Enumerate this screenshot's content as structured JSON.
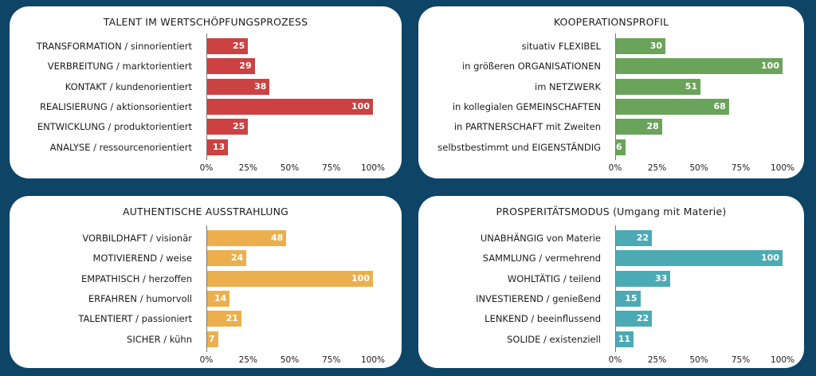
{
  "colors": {
    "background": "#0e4466",
    "card": "#ffffff"
  },
  "tick_labels": [
    "0%",
    "25%",
    "50%",
    "75%",
    "100%"
  ],
  "chart_data": [
    {
      "type": "bar",
      "orientation": "horizontal",
      "title": "TALENT IM WERTSCHÖPFUNGSPROZESS",
      "color": "#cc4141",
      "categories": [
        "TRANSFORMATION / sinnorientiert",
        "VERBREITUNG / marktorientiert",
        "KONTAKT / kundenorientiert",
        "REALISIERUNG / aktionsorientiert",
        "ENTWICKLUNG / produktorientiert",
        "ANALYSE / ressourcenorientiert"
      ],
      "values": [
        25,
        29,
        38,
        100,
        25,
        13
      ],
      "xlim": [
        0,
        100
      ],
      "ticks": [
        0,
        25,
        50,
        75,
        100
      ]
    },
    {
      "type": "bar",
      "orientation": "horizontal",
      "title": "KOOPERATIONSPROFIL",
      "color": "#6aa35a",
      "categories": [
        "situativ FLEXIBEL",
        "in größeren ORGANISATIONEN",
        "im NETZWERK",
        "in kollegialen GEMEINSCHAFTEN",
        "in PARTNERSCHAFT mit Zweiten",
        "selbstbestimmt und EIGENSTÄNDIG"
      ],
      "values": [
        30,
        100,
        51,
        68,
        28,
        6
      ],
      "xlim": [
        0,
        100
      ],
      "ticks": [
        0,
        25,
        50,
        75,
        100
      ]
    },
    {
      "type": "bar",
      "orientation": "horizontal",
      "title": "AUTHENTISCHE AUSSTRAHLUNG",
      "color": "#ebb04d",
      "categories": [
        "VORBILDHAFT / visionär",
        "MOTIVIEREND / weise",
        "EMPATHISCH / herzoffen",
        "ERFAHREN / humorvoll",
        "TALENTIERT / passioniert",
        "SICHER / kühn"
      ],
      "values": [
        48,
        24,
        100,
        14,
        21,
        7
      ],
      "xlim": [
        0,
        100
      ],
      "ticks": [
        0,
        25,
        50,
        75,
        100
      ]
    },
    {
      "type": "bar",
      "orientation": "horizontal",
      "title": "PROSPERITÄTSMODUS (Umgang mit Materie)",
      "color": "#4caab5",
      "categories": [
        "UNABHÄNGIG von Materie",
        "SAMMLUNG / vermehrend",
        "WOHLTÄTIG / teilend",
        "INVESTIEREND / genießend",
        "LENKEND / beeinflussend",
        "SOLIDE / existenziell"
      ],
      "values": [
        22,
        100,
        33,
        15,
        22,
        11
      ],
      "xlim": [
        0,
        100
      ],
      "ticks": [
        0,
        25,
        50,
        75,
        100
      ]
    }
  ]
}
